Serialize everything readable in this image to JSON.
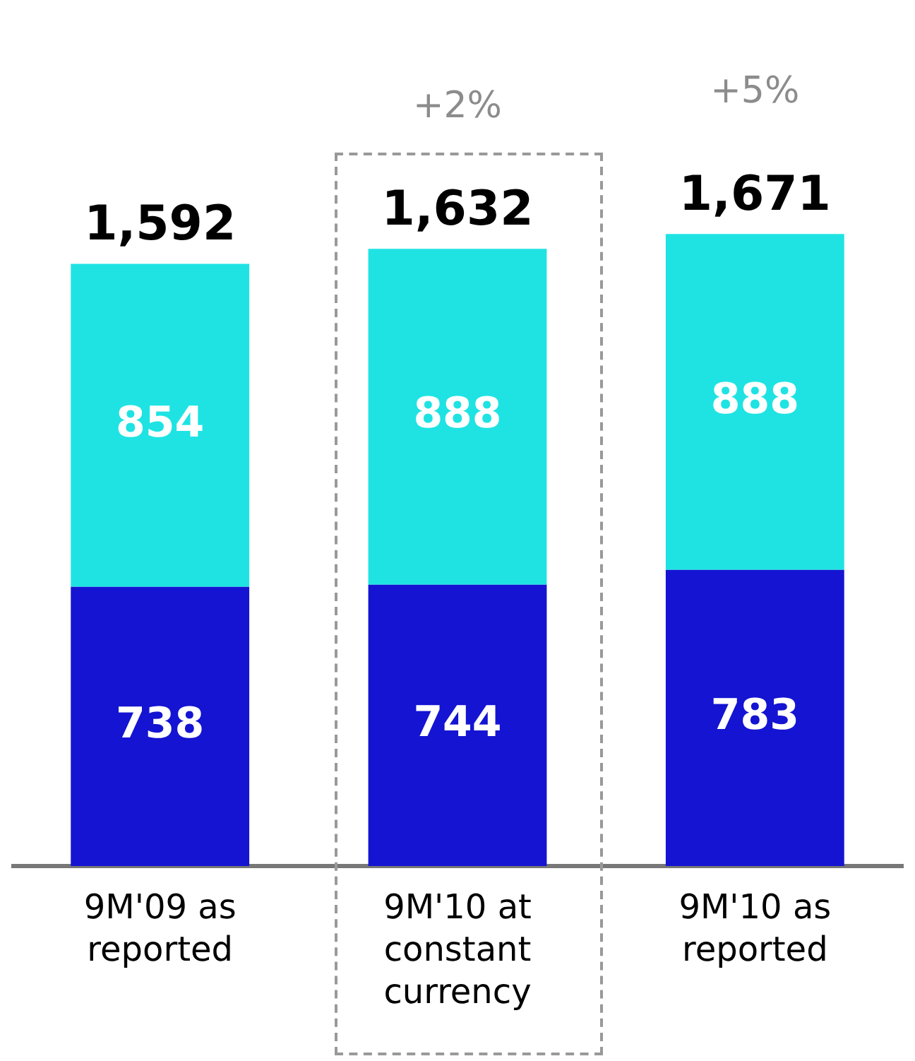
{
  "chart_data": {
    "type": "bar",
    "stacked": true,
    "categories": [
      "9M'09 as reported",
      "9M'10 at constant currency",
      "9M'10 as reported"
    ],
    "series": [
      {
        "color": "#1414d2",
        "values": [
          738,
          744,
          783
        ]
      },
      {
        "color": "#1fe3e3",
        "values": [
          854,
          888,
          888
        ]
      }
    ],
    "data_labels": true,
    "totals": [
      "1,592",
      "1,632",
      "1,671"
    ],
    "annotations": [
      "+2%",
      "+5%"
    ],
    "legend": false,
    "grid": false
  }
}
